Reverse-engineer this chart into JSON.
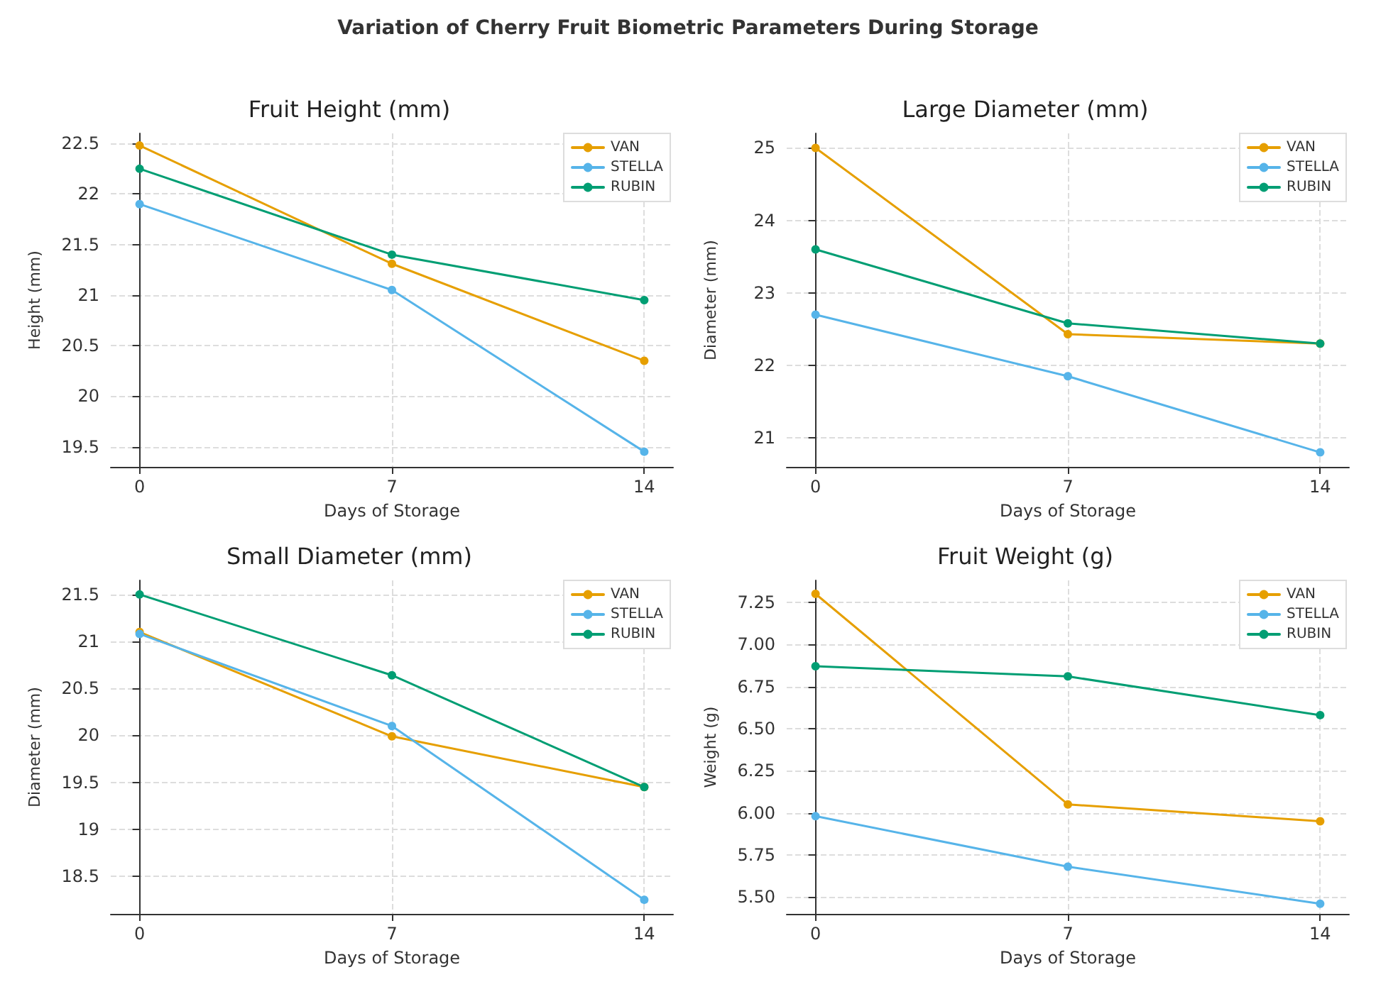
{
  "chart_data": [
    {
      "type": "line",
      "title": "Fruit Height (mm)",
      "xlabel": "Days of Storage",
      "ylabel": "Height (mm)",
      "annotations": [
        "Variation of Cherry Fruit Biometric Parameters During Storage"
      ],
      "x": [
        0,
        7,
        14
      ],
      "xlim": [
        -0.8,
        14.8
      ],
      "xticks": [
        0,
        7,
        14
      ],
      "ylim": [
        19.3,
        22.6
      ],
      "yticks": [
        19.5,
        20.0,
        20.5,
        21.0,
        21.5,
        22.0,
        22.5
      ],
      "grid": true,
      "legend": "top right",
      "marker": "circle",
      "line_style": "solid",
      "series": [
        {
          "name": "VAN",
          "color": "#e69f00",
          "values": [
            22.48,
            21.31,
            20.35
          ]
        },
        {
          "name": "STELLA",
          "color": "#56b4e9",
          "values": [
            21.9,
            21.05,
            19.45
          ]
        },
        {
          "name": "RUBIN",
          "color": "#009e73",
          "values": [
            22.25,
            21.4,
            20.95
          ]
        }
      ]
    },
    {
      "type": "line",
      "title": "Large Diameter (mm)",
      "xlabel": "Days of Storage",
      "ylabel": "Diameter (mm)",
      "x": [
        0,
        7,
        14
      ],
      "xlim": [
        -0.8,
        14.8
      ],
      "xticks": [
        0,
        7,
        14
      ],
      "ylim": [
        20.6,
        25.2
      ],
      "yticks": [
        21,
        22,
        23,
        24,
        25
      ],
      "grid": true,
      "legend": "top right",
      "marker": "circle",
      "line_style": "solid",
      "series": [
        {
          "name": "VAN",
          "color": "#e69f00",
          "values": [
            25.0,
            22.43,
            22.3
          ]
        },
        {
          "name": "STELLA",
          "color": "#56b4e9",
          "values": [
            22.7,
            21.85,
            20.8
          ]
        },
        {
          "name": "RUBIN",
          "color": "#009e73",
          "values": [
            23.6,
            22.58,
            22.3
          ]
        }
      ]
    },
    {
      "type": "line",
      "title": "Small Diameter (mm)",
      "xlabel": "Days of Storage",
      "ylabel": "Diameter (mm)",
      "x": [
        0,
        7,
        14
      ],
      "xlim": [
        -0.8,
        14.8
      ],
      "xticks": [
        0,
        7,
        14
      ],
      "ylim": [
        18.1,
        21.65
      ],
      "yticks": [
        18.5,
        19.0,
        19.5,
        20.0,
        20.5,
        21.0,
        21.5
      ],
      "grid": true,
      "legend": "top right",
      "marker": "circle",
      "line_style": "solid",
      "series": [
        {
          "name": "VAN",
          "color": "#e69f00",
          "values": [
            21.1,
            19.99,
            19.45
          ]
        },
        {
          "name": "STELLA",
          "color": "#56b4e9",
          "values": [
            21.08,
            20.1,
            18.25
          ]
        },
        {
          "name": "RUBIN",
          "color": "#009e73",
          "values": [
            21.5,
            20.64,
            19.45
          ]
        }
      ]
    },
    {
      "type": "line",
      "title": "Fruit Weight (g)",
      "xlabel": "Days of Storage",
      "ylabel": "Weight (g)",
      "x": [
        0,
        7,
        14
      ],
      "xlim": [
        -0.8,
        14.8
      ],
      "xticks": [
        0,
        7,
        14
      ],
      "ylim": [
        5.4,
        7.38
      ],
      "yticks": [
        {
          "value": 5.5,
          "label": "5.50"
        },
        5.75,
        {
          "value": 6,
          "label": "6.00"
        },
        6.25,
        {
          "value": 6.5,
          "label": "6.50"
        },
        6.75,
        {
          "value": 7,
          "label": "7.00"
        },
        7.25
      ],
      "grid": true,
      "legend": "top right",
      "marker": "circle",
      "line_style": "solid",
      "series": [
        {
          "name": "VAN",
          "color": "#e69f00",
          "values": [
            7.3,
            6.05,
            5.95
          ]
        },
        {
          "name": "STELLA",
          "color": "#56b4e9",
          "values": [
            5.98,
            5.68,
            5.46
          ]
        },
        {
          "name": "RUBIN",
          "color": "#009e73",
          "values": [
            6.87,
            6.81,
            6.58
          ]
        }
      ]
    }
  ]
}
